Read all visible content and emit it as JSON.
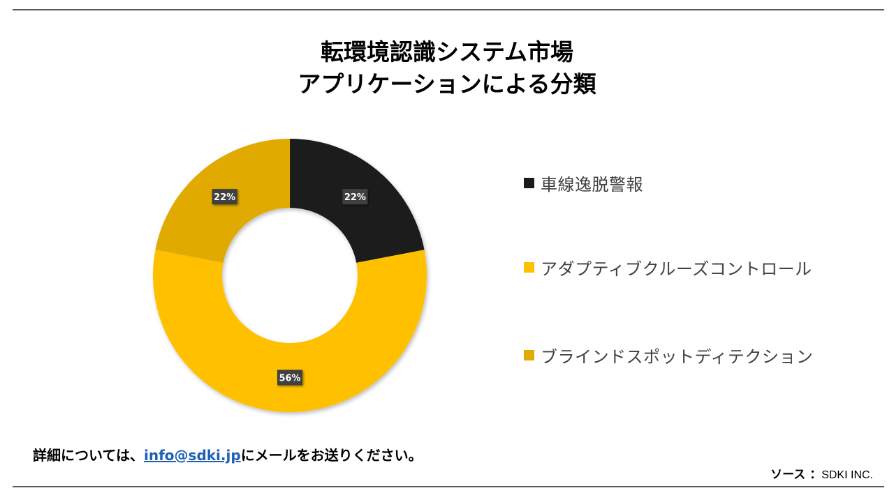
{
  "title": {
    "line1": "転環境認識システム市場",
    "line2": "アプリケーションによる分類"
  },
  "chart_data": {
    "type": "pie",
    "variant": "donut",
    "categories": [
      "車線逸脱警報",
      "アダプティブクルーズコントロール",
      "ブラインドスポットディテクション"
    ],
    "values": [
      22,
      56,
      22
    ],
    "data_labels": [
      "22%",
      "56%",
      "22%"
    ],
    "colors": [
      "#1a1a1a",
      "#ffc000",
      "#e0aa00"
    ],
    "legend_position": "right"
  },
  "footer": {
    "prefix": "詳細については、",
    "email": "info@sdki.jp",
    "suffix": "にメールをお送りください。"
  },
  "source": {
    "label": "ソース ：",
    "value": "SDKI INC."
  }
}
